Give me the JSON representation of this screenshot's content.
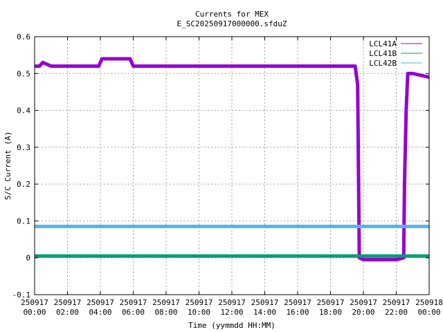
{
  "chart_data": {
    "type": "line",
    "title": "Currents for MEX",
    "subtitle": "E_SC20250917000000.sfduZ",
    "xlabel": "Time (yymmdd HH:MM)",
    "ylabel": "S/C Current (A)",
    "ylim": [
      -0.1,
      0.6
    ],
    "xlim": [
      0,
      24
    ],
    "grid": true,
    "legend_position": "top-right",
    "y_ticks": [
      {
        "value": -0.1,
        "label": "-0.1"
      },
      {
        "value": 0,
        "label": "0"
      },
      {
        "value": 0.1,
        "label": "0.1"
      },
      {
        "value": 0.2,
        "label": "0.2"
      },
      {
        "value": 0.3,
        "label": "0.3"
      },
      {
        "value": 0.4,
        "label": "0.4"
      },
      {
        "value": 0.5,
        "label": "0.5"
      },
      {
        "value": 0.6,
        "label": "0.6"
      }
    ],
    "x_ticks": [
      {
        "value": 0,
        "date": "250917",
        "time": "00:00"
      },
      {
        "value": 2,
        "date": "250917",
        "time": "02:00"
      },
      {
        "value": 4,
        "date": "250917",
        "time": "04:00"
      },
      {
        "value": 6,
        "date": "250917",
        "time": "06:00"
      },
      {
        "value": 8,
        "date": "250917",
        "time": "08:00"
      },
      {
        "value": 10,
        "date": "250917",
        "time": "10:00"
      },
      {
        "value": 12,
        "date": "250917",
        "time": "12:00"
      },
      {
        "value": 14,
        "date": "250917",
        "time": "14:00"
      },
      {
        "value": 16,
        "date": "250917",
        "time": "16:00"
      },
      {
        "value": 18,
        "date": "250917",
        "time": "18:00"
      },
      {
        "value": 20,
        "date": "250917",
        "time": "20:00"
      },
      {
        "value": 22,
        "date": "250917",
        "time": "22:00"
      },
      {
        "value": 24,
        "date": "250918",
        "time": "00:00"
      }
    ],
    "series": [
      {
        "name": "LCL41A",
        "color": "#9400d3",
        "x": [
          0,
          0.3,
          0.5,
          1.0,
          2.0,
          3.0,
          3.9,
          4.1,
          5.0,
          5.8,
          6.0,
          8.0,
          10.0,
          12.0,
          14.0,
          16.0,
          18.0,
          19.2,
          19.5,
          19.65,
          19.75,
          20.0,
          21.0,
          22.0,
          22.45,
          22.5,
          22.6,
          22.7,
          23.0,
          24.0
        ],
        "y": [
          0.52,
          0.52,
          0.53,
          0.52,
          0.52,
          0.52,
          0.52,
          0.54,
          0.54,
          0.54,
          0.52,
          0.52,
          0.52,
          0.52,
          0.52,
          0.52,
          0.52,
          0.52,
          0.52,
          0.47,
          0.0,
          -0.005,
          -0.005,
          -0.005,
          0.0,
          0.2,
          0.4,
          0.5,
          0.5,
          0.49
        ]
      },
      {
        "name": "LCL41B",
        "color": "#009e73",
        "x": [
          0,
          24
        ],
        "y": [
          0.005,
          0.005
        ]
      },
      {
        "name": "LCL42B",
        "color": "#56b4e9",
        "x": [
          0,
          24
        ],
        "y": [
          0.085,
          0.085
        ]
      }
    ]
  }
}
